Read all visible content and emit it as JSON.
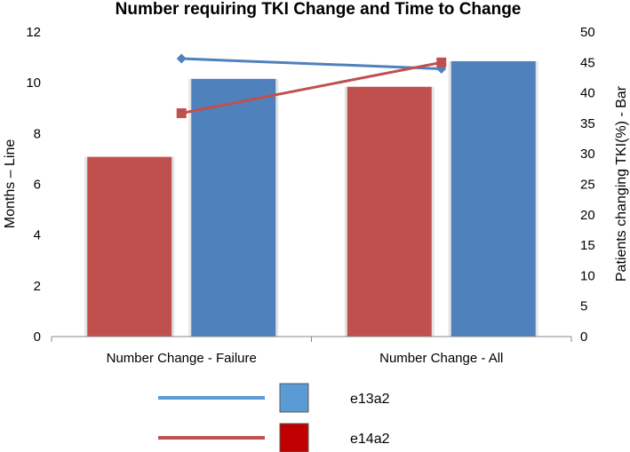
{
  "chart_data": {
    "type": "bar",
    "title": "Number requiring TKI Change and Time to Change",
    "categories": [
      "Number Change - Failure",
      "Number Change - All"
    ],
    "ylabel_left": "Months – Line",
    "ylabel_right": "Patients changing TKI(%) - Bar",
    "ylim_left": [
      0,
      12
    ],
    "yticks_left": [
      "0",
      "2",
      "4",
      "6",
      "8",
      "10",
      "12"
    ],
    "ylim_right": [
      0,
      50
    ],
    "yticks_right": [
      "0",
      "5",
      "10",
      "15",
      "20",
      "25",
      "30",
      "35",
      "40",
      "45",
      "50"
    ],
    "grid": false,
    "legend_position": "bottom",
    "bar_series": [
      {
        "name": "e14a2",
        "values": [
          29.5,
          41
        ],
        "color": "#c0504d"
      },
      {
        "name": "e13a2",
        "values": [
          42.3,
          45.2
        ],
        "color": "#4f81bd"
      }
    ],
    "line_series": [
      {
        "name": "e13a2",
        "values": [
          10.95,
          10.55
        ],
        "color": "#4f81bd",
        "marker": "diamond"
      },
      {
        "name": "e14a2",
        "values": [
          8.8,
          10.8
        ],
        "color": "#c0504d",
        "marker": "square"
      }
    ],
    "legend": [
      {
        "label": "e13a2",
        "line_color": "#5b9bd5",
        "box_color": "#5b9bd5"
      },
      {
        "label": "e14a2",
        "line_color": "#c0504d",
        "box_color": "#c00000"
      }
    ]
  }
}
